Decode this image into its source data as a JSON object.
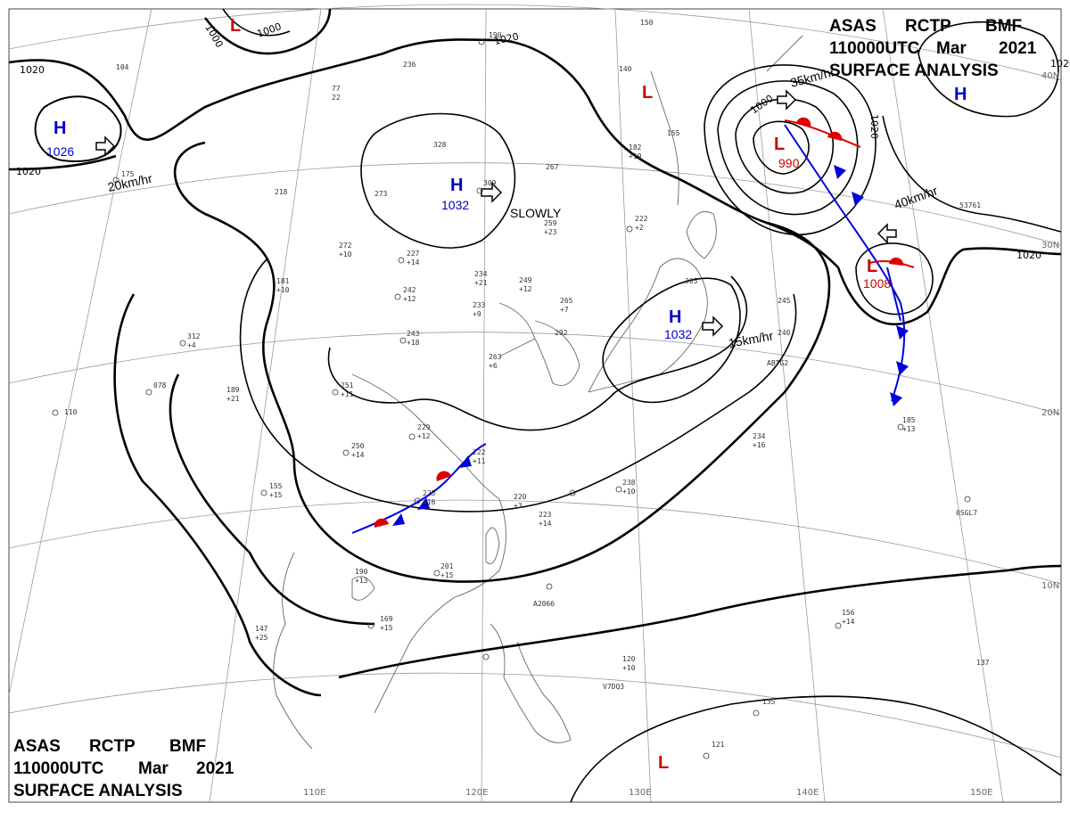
{
  "header": {
    "line1": [
      "ASAS",
      "RCTP",
      "BMF"
    ],
    "line2": [
      "110000UTC",
      "Mar",
      "2021"
    ],
    "line3": "SURFACE ANALYSIS"
  },
  "colors": {
    "high": "#0000cc",
    "low": "#cc0000",
    "isobar": "#000000",
    "coast": "#666666",
    "grid": "#9a9a9a",
    "cold_front": "#0000dd",
    "warm_front": "#dd0000"
  },
  "latitude_labels": [
    "40N",
    "30N",
    "20N",
    "10N"
  ],
  "longitude_labels": [
    "110E",
    "120E",
    "130E",
    "140E",
    "150E"
  ],
  "isobar_labels": [
    "1020",
    "1000",
    "1000",
    "1020",
    "1020",
    "1020",
    "1000",
    "1020",
    "1020"
  ],
  "centers": [
    {
      "type": "H",
      "pressure": "1026"
    },
    {
      "type": "H",
      "pressure": "1032"
    },
    {
      "type": "H",
      "pressure": "1032"
    },
    {
      "type": "H",
      "pressure": ""
    },
    {
      "type": "L",
      "pressure": ""
    },
    {
      "type": "L",
      "pressure": ""
    },
    {
      "type": "L",
      "pressure": "990"
    },
    {
      "type": "L",
      "pressure": "1008"
    },
    {
      "type": "L",
      "pressure": ""
    }
  ],
  "motions": [
    "20km/hr",
    "SLOWLY",
    "15km/hr",
    "35km/hr",
    "40km/hr"
  ],
  "stations": [
    "175",
    "104",
    "236",
    "190",
    "150",
    "140",
    "77",
    "22",
    "328",
    "309",
    "267",
    "182",
    "+19",
    "155",
    "218",
    "273",
    "259",
    "+23",
    "222",
    "+2",
    "272",
    "+10",
    "227",
    "+14",
    "242",
    "+12",
    "234",
    "+21",
    "249",
    "+12",
    "305",
    "245",
    "181",
    "+10",
    "233",
    "+9",
    "265",
    "+7",
    "240",
    "243",
    "+18",
    "263",
    "+6",
    "292",
    "312",
    "+4",
    "189",
    "+21",
    "251",
    "+11",
    "229",
    "+12",
    "250",
    "+14",
    "234",
    "+16",
    "222",
    "+11",
    "225",
    "+16",
    "155",
    "+15",
    "220",
    "+3",
    "223",
    "+14",
    "238",
    "+10",
    "190",
    "+13",
    "201",
    "+15",
    "169",
    "+15",
    "147",
    "+25",
    "120",
    "+10",
    "156",
    "+14",
    "137",
    "135",
    "121",
    "110",
    "078",
    "185",
    "+13",
    "A2066",
    "V7DQ3",
    "ABTG2",
    "0SGL7",
    "53761"
  ]
}
